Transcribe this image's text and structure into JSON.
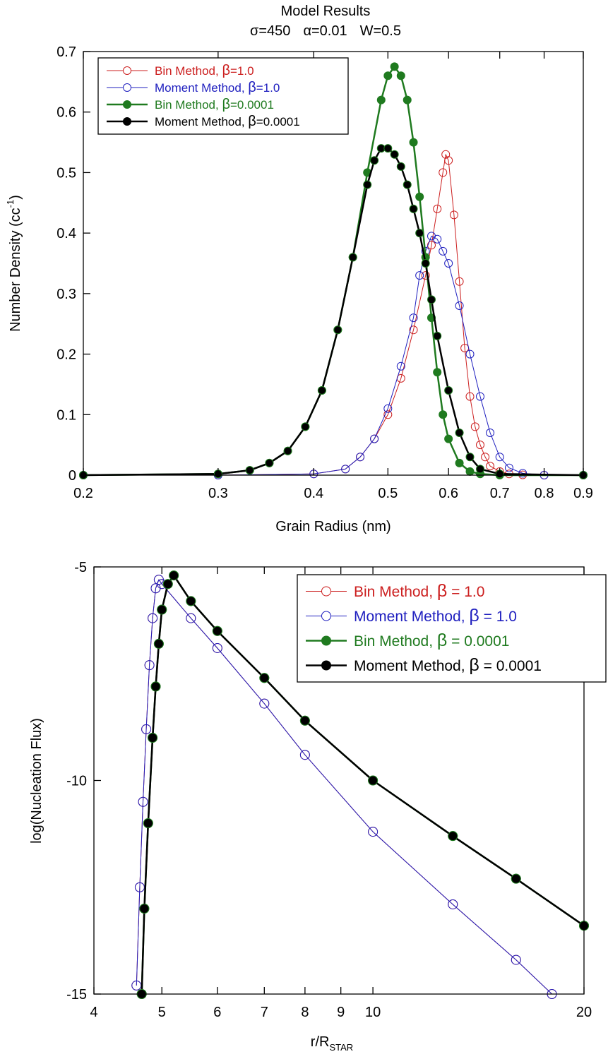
{
  "figure": {
    "title": "Model Results",
    "subtitle_parts": {
      "sigma_sym": "σ",
      "sigma_val": "=450",
      "alpha_sym": "α",
      "alpha_val": "=0.01",
      "w_text": "W=0.5"
    }
  },
  "chart_data": [
    {
      "type": "line",
      "xlabel": "Grain Radius (nm)",
      "ylabel_main": "Number Density (cc",
      "ylabel_sup": "-1",
      "ylabel_close": ")",
      "xscale": "log",
      "xlim": [
        0.2,
        0.9
      ],
      "ylim": [
        0,
        0.7
      ],
      "x_ticks": [
        0.2,
        0.3,
        0.4,
        0.5,
        0.6,
        0.7,
        0.8,
        0.9
      ],
      "x_tick_labels": [
        "0.2",
        "0.3",
        "0.4",
        "0.5",
        "0.6",
        "0.7",
        "0.8",
        "0.9"
      ],
      "y_ticks": [
        0,
        0.1,
        0.2,
        0.3,
        0.4,
        0.5,
        0.6,
        0.7
      ],
      "y_tick_labels": [
        "0",
        "0.1",
        "0.2",
        "0.3",
        "0.4",
        "0.5",
        "0.6",
        "0.7"
      ],
      "legend_position": "top-left",
      "series": [
        {
          "legend_text": "Bin Method, ",
          "legend_beta": "β",
          "legend_value": "=1.0",
          "color": "#cc1f1f",
          "marker": "open-circle",
          "x": [
            0.2,
            0.3,
            0.4,
            0.44,
            0.46,
            0.48,
            0.5,
            0.52,
            0.54,
            0.56,
            0.57,
            0.58,
            0.59,
            0.595,
            0.6,
            0.61,
            0.62,
            0.63,
            0.64,
            0.65,
            0.66,
            0.67,
            0.68,
            0.7,
            0.72,
            0.75,
            0.8,
            0.9
          ],
          "y": [
            0,
            0,
            0.002,
            0.01,
            0.03,
            0.06,
            0.1,
            0.16,
            0.24,
            0.33,
            0.38,
            0.44,
            0.5,
            0.53,
            0.52,
            0.43,
            0.32,
            0.21,
            0.13,
            0.08,
            0.05,
            0.03,
            0.015,
            0.006,
            0.002,
            0.0005,
            0,
            0
          ]
        },
        {
          "legend_text": "Moment Method, ",
          "legend_beta": "β",
          "legend_value": "=1.0",
          "color": "#1f1fbf",
          "marker": "open-circle",
          "x": [
            0.2,
            0.3,
            0.4,
            0.44,
            0.46,
            0.48,
            0.5,
            0.52,
            0.54,
            0.55,
            0.56,
            0.57,
            0.58,
            0.59,
            0.6,
            0.62,
            0.64,
            0.66,
            0.68,
            0.7,
            0.72,
            0.75,
            0.8,
            0.9
          ],
          "y": [
            0,
            0,
            0.002,
            0.01,
            0.03,
            0.06,
            0.11,
            0.18,
            0.26,
            0.33,
            0.37,
            0.395,
            0.39,
            0.37,
            0.35,
            0.28,
            0.2,
            0.13,
            0.07,
            0.03,
            0.012,
            0.003,
            0,
            0
          ]
        },
        {
          "legend_text": "Bin Method, ",
          "legend_beta": "β",
          "legend_value": "=0.0001",
          "color": "#1f7a1f",
          "marker": "filled-circle",
          "x": [
            0.2,
            0.3,
            0.33,
            0.35,
            0.37,
            0.39,
            0.41,
            0.43,
            0.45,
            0.47,
            0.49,
            0.5,
            0.51,
            0.52,
            0.53,
            0.54,
            0.55,
            0.56,
            0.57,
            0.58,
            0.59,
            0.6,
            0.62,
            0.64,
            0.66,
            0.7,
            0.9
          ],
          "y": [
            0,
            0.002,
            0.008,
            0.02,
            0.04,
            0.08,
            0.14,
            0.24,
            0.36,
            0.5,
            0.62,
            0.66,
            0.675,
            0.66,
            0.62,
            0.55,
            0.46,
            0.36,
            0.26,
            0.17,
            0.1,
            0.06,
            0.02,
            0.006,
            0.002,
            0,
            0
          ]
        },
        {
          "legend_text": "Moment Method, ",
          "legend_beta": "β",
          "legend_value": "=0.0001",
          "color": "#000000",
          "marker": "filled-circle",
          "x": [
            0.2,
            0.3,
            0.33,
            0.35,
            0.37,
            0.39,
            0.41,
            0.43,
            0.45,
            0.47,
            0.48,
            0.49,
            0.5,
            0.51,
            0.52,
            0.53,
            0.54,
            0.55,
            0.56,
            0.57,
            0.58,
            0.6,
            0.62,
            0.64,
            0.66,
            0.7,
            0.9
          ],
          "y": [
            0,
            0.002,
            0.008,
            0.02,
            0.04,
            0.08,
            0.14,
            0.24,
            0.36,
            0.48,
            0.52,
            0.54,
            0.54,
            0.53,
            0.51,
            0.48,
            0.44,
            0.4,
            0.35,
            0.29,
            0.23,
            0.14,
            0.07,
            0.03,
            0.01,
            0.002,
            0
          ]
        }
      ]
    },
    {
      "type": "line",
      "xlabel_main": "r/R",
      "xlabel_sub": "STAR",
      "ylabel": "log(Nucleation Flux)",
      "xscale": "log",
      "xlim": [
        4,
        20
      ],
      "ylim": [
        -15,
        -5
      ],
      "x_ticks": [
        4,
        5,
        6,
        7,
        8,
        9,
        10,
        20
      ],
      "x_tick_labels": [
        "4",
        "5",
        "6",
        "7",
        "8",
        "9",
        "10",
        "20"
      ],
      "y_ticks": [
        -15,
        -10,
        -5
      ],
      "y_tick_labels": [
        "-15",
        "-10",
        "-5"
      ],
      "legend_position": "top-right",
      "series": [
        {
          "legend_text": "Bin Method, ",
          "legend_beta": "β",
          "legend_value": " = 1.0",
          "color": "#cc1f1f",
          "marker": "open-circle",
          "x": [
            4.6,
            4.65,
            4.7,
            4.75,
            4.8,
            4.85,
            4.9,
            4.95,
            5.0,
            5.5,
            6.0,
            7.0,
            8.0,
            10.0,
            13.0,
            16.0,
            18.0
          ],
          "y": [
            -14.8,
            -12.5,
            -10.5,
            -8.8,
            -7.3,
            -6.2,
            -5.5,
            -5.3,
            -5.4,
            -6.2,
            -6.9,
            -8.2,
            -9.4,
            -11.2,
            -12.9,
            -14.2,
            -15.0
          ]
        },
        {
          "legend_text": "Moment Method, ",
          "legend_beta": "β",
          "legend_value": " = 1.0",
          "color": "#1f1fbf",
          "marker": "open-circle",
          "x": [
            4.6,
            4.65,
            4.7,
            4.75,
            4.8,
            4.85,
            4.9,
            4.95,
            5.0,
            5.5,
            6.0,
            7.0,
            8.0,
            10.0,
            13.0,
            16.0,
            18.0
          ],
          "y": [
            -14.8,
            -12.5,
            -10.5,
            -8.8,
            -7.3,
            -6.2,
            -5.5,
            -5.3,
            -5.4,
            -6.2,
            -6.9,
            -8.2,
            -9.4,
            -11.2,
            -12.9,
            -14.2,
            -15.0
          ]
        },
        {
          "legend_text": "Bin Method, ",
          "legend_beta": "β",
          "legend_value": " = 0.0001",
          "color": "#1f7a1f",
          "marker": "filled-circle",
          "x": [
            4.68,
            4.72,
            4.78,
            4.85,
            4.9,
            4.95,
            5.0,
            5.1,
            5.2,
            5.5,
            6.0,
            7.0,
            8.0,
            10.0,
            13.0,
            16.0,
            20.0
          ],
          "y": [
            -15.0,
            -13.0,
            -11.0,
            -9.0,
            -7.8,
            -6.8,
            -6.0,
            -5.4,
            -5.2,
            -5.8,
            -6.5,
            -7.6,
            -8.6,
            -10.0,
            -11.3,
            -12.3,
            -13.4
          ]
        },
        {
          "legend_text": "Moment Method, ",
          "legend_beta": "β",
          "legend_value": " = 0.0001",
          "color": "#000000",
          "marker": "filled-circle",
          "x": [
            4.68,
            4.72,
            4.78,
            4.85,
            4.9,
            4.95,
            5.0,
            5.1,
            5.2,
            5.5,
            6.0,
            7.0,
            8.0,
            10.0,
            13.0,
            16.0,
            20.0
          ],
          "y": [
            -15.0,
            -13.0,
            -11.0,
            -9.0,
            -7.8,
            -6.8,
            -6.0,
            -5.4,
            -5.2,
            -5.8,
            -6.5,
            -7.6,
            -8.6,
            -10.0,
            -11.3,
            -12.3,
            -13.4
          ]
        }
      ]
    }
  ]
}
